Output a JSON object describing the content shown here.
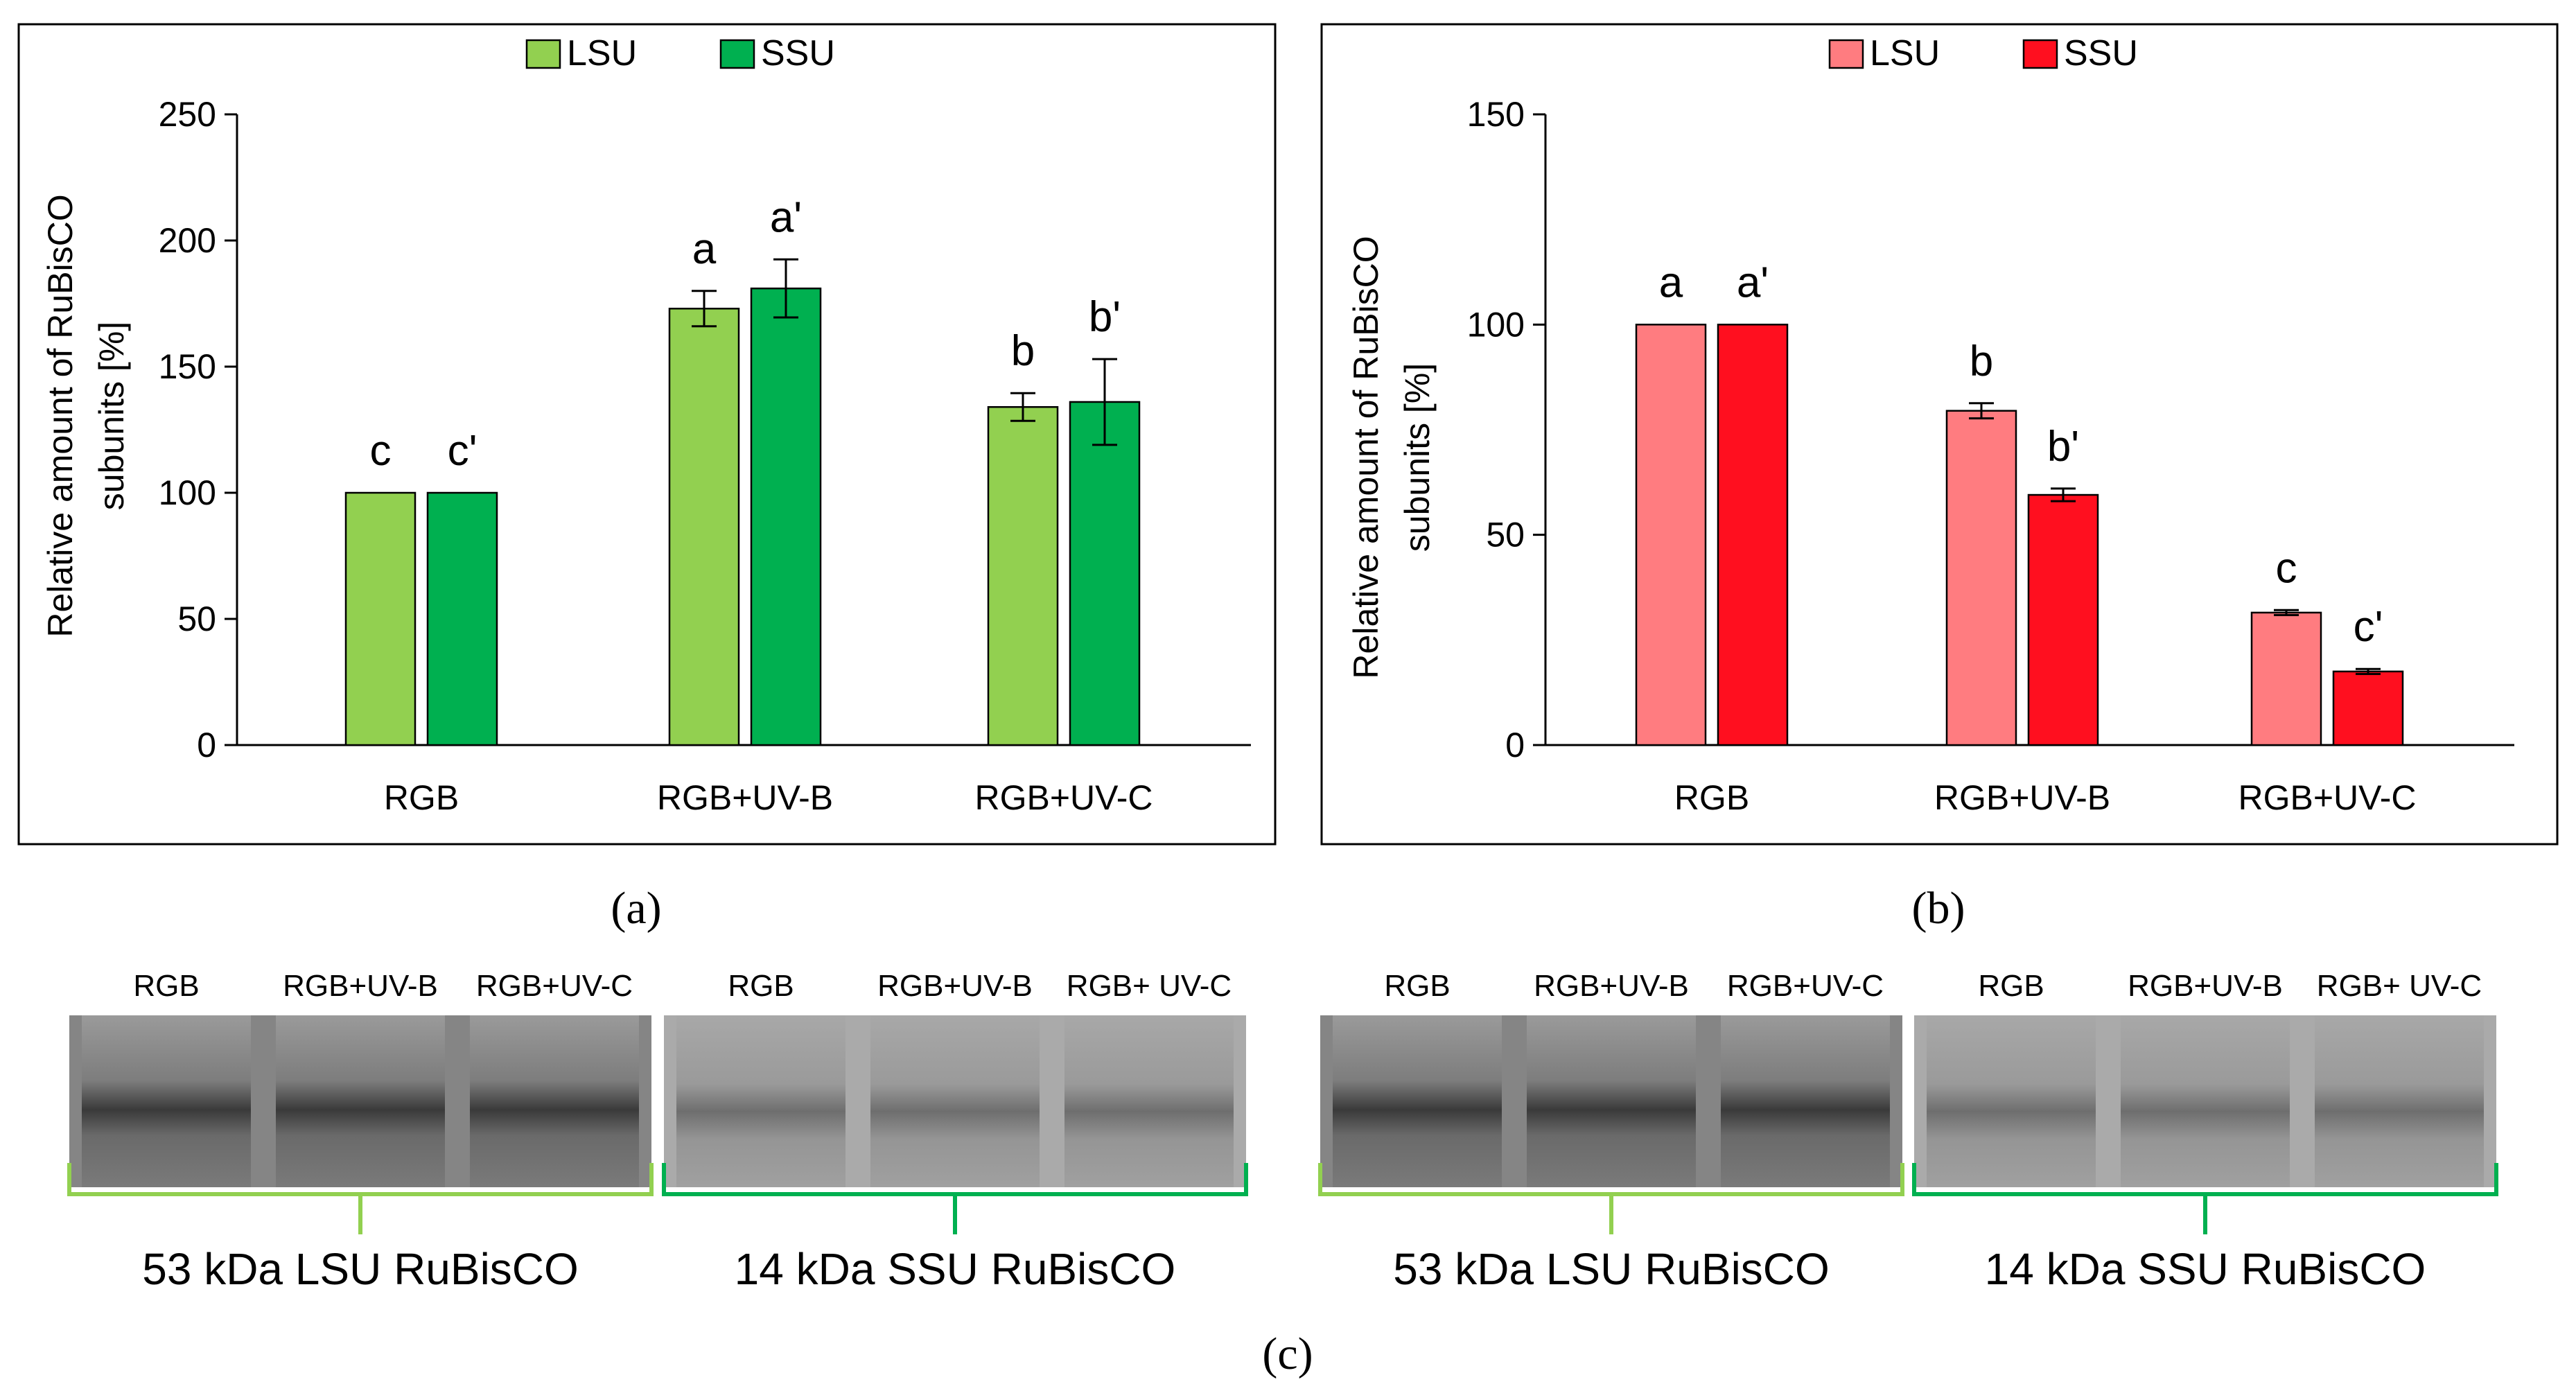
{
  "chart_data": [
    {
      "type": "bar",
      "panel_label": "(a)",
      "categories": [
        "RGB",
        "RGB+UV-B",
        "RGB+UV-C"
      ],
      "ylabel_line1": "Relative amount of RuBisCO",
      "ylabel_line2": "subunits  [%]",
      "ylim": [
        0,
        250
      ],
      "yticks": [
        "0",
        "50",
        "100",
        "150",
        "200",
        "250"
      ],
      "legend": "top-center",
      "series": [
        {
          "name": "LSU",
          "color": "#92d050",
          "values": [
            100,
            173,
            134
          ],
          "errors": [
            0,
            7,
            5.5
          ],
          "letters": [
            "c",
            "a",
            "b"
          ]
        },
        {
          "name": "SSU",
          "color": "#00b050",
          "values": [
            100,
            181,
            136
          ],
          "errors": [
            0,
            11.5,
            17
          ],
          "letters": [
            "c'",
            "a'",
            "b'"
          ]
        }
      ]
    },
    {
      "type": "bar",
      "panel_label": "(b)",
      "categories": [
        "RGB",
        "RGB+UV-B",
        "RGB+UV-C"
      ],
      "ylabel_line1": "Relative amount of RuBisCO",
      "ylabel_line2": "subunits  [%]",
      "ylim": [
        0,
        150
      ],
      "yticks": [
        "0",
        "50",
        "100",
        "150"
      ],
      "legend": "top-center",
      "series": [
        {
          "name": "LSU",
          "color": "#ff7c80",
          "values": [
            100,
            79.5,
            31.5
          ],
          "errors": [
            0,
            1.8,
            0.6
          ],
          "letters": [
            "a",
            "b",
            "c"
          ]
        },
        {
          "name": "SSU",
          "color": "#ff0f1f",
          "values": [
            100,
            59.5,
            17.5
          ],
          "errors": [
            0,
            1.5,
            0.6
          ],
          "letters": [
            "a'",
            "b'",
            "c'"
          ]
        }
      ]
    }
  ],
  "blots": {
    "panel_label": "(c)",
    "left": {
      "lsu_lanes": [
        "RGB",
        "RGB+UV-B",
        "RGB+UV-C"
      ],
      "ssu_lanes": [
        "RGB",
        "RGB+UV-B",
        "RGB+ UV-C"
      ],
      "lsu_label": "53 kDa LSU RuBisCO",
      "ssu_label": "14 kDa SSU RuBisCO",
      "lsu_bracket_color": "#92d050",
      "ssu_bracket_color": "#00b050"
    },
    "right": {
      "lsu_lanes": [
        "RGB",
        "RGB+UV-B",
        "RGB+UV-C"
      ],
      "ssu_lanes": [
        "RGB",
        "RGB+UV-B",
        "RGB+ UV-C"
      ],
      "lsu_label": "53 kDa LSU RuBisCO",
      "ssu_label": "14 kDa SSU RuBisCO",
      "lsu_bracket_color": "#92d050",
      "ssu_bracket_color": "#00b050"
    }
  }
}
